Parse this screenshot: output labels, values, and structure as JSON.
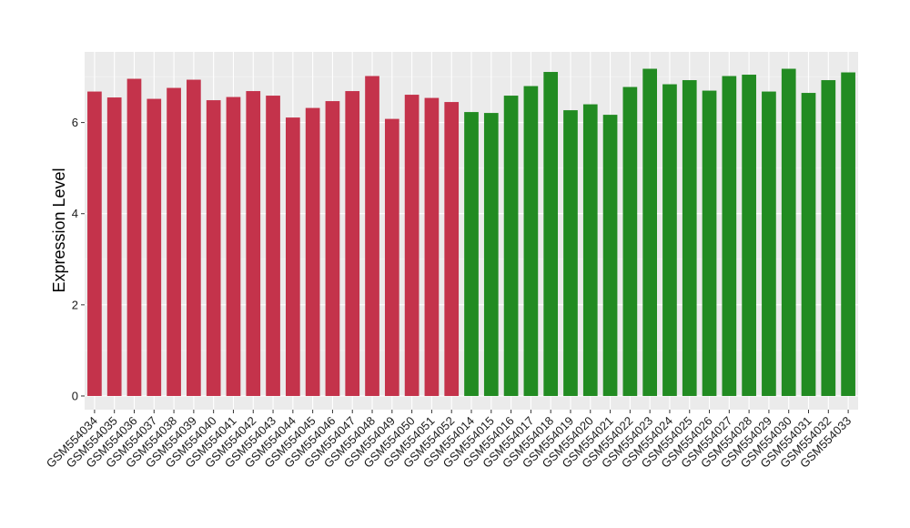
{
  "chart_data": {
    "type": "bar",
    "title": "",
    "xlabel": "",
    "ylabel": "Expression Level",
    "ylim": [
      -0.3,
      7.55
    ],
    "yticks": [
      0,
      2,
      4,
      6
    ],
    "grid": true,
    "background": "#ebebeb",
    "categories": [
      "GSM554034",
      "GSM554035",
      "GSM554036",
      "GSM554037",
      "GSM554038",
      "GSM554039",
      "GSM554040",
      "GSM554041",
      "GSM554042",
      "GSM554043",
      "GSM554044",
      "GSM554045",
      "GSM554046",
      "GSM554047",
      "GSM554048",
      "GSM554049",
      "GSM554050",
      "GSM554051",
      "GSM554052",
      "GSM554014",
      "GSM554015",
      "GSM554016",
      "GSM554017",
      "GSM554018",
      "GSM554019",
      "GSM554020",
      "GSM554021",
      "GSM554022",
      "GSM554023",
      "GSM554024",
      "GSM554025",
      "GSM554026",
      "GSM554027",
      "GSM554028",
      "GSM554029",
      "GSM554030",
      "GSM554031",
      "GSM554032",
      "GSM554033"
    ],
    "values": [
      6.68,
      6.55,
      6.96,
      6.52,
      6.76,
      6.94,
      6.49,
      6.56,
      6.69,
      6.59,
      6.11,
      6.32,
      6.47,
      6.69,
      7.02,
      6.08,
      6.61,
      6.54,
      6.45,
      6.23,
      6.21,
      6.59,
      6.8,
      7.11,
      6.27,
      6.4,
      6.17,
      6.78,
      7.18,
      6.84,
      6.93,
      6.7,
      7.02,
      7.05,
      6.68,
      7.18,
      6.65,
      6.93,
      7.1
    ],
    "groups": [
      {
        "color": "#c4334b",
        "count": 19
      },
      {
        "color": "#228b22",
        "count": 20
      }
    ]
  }
}
